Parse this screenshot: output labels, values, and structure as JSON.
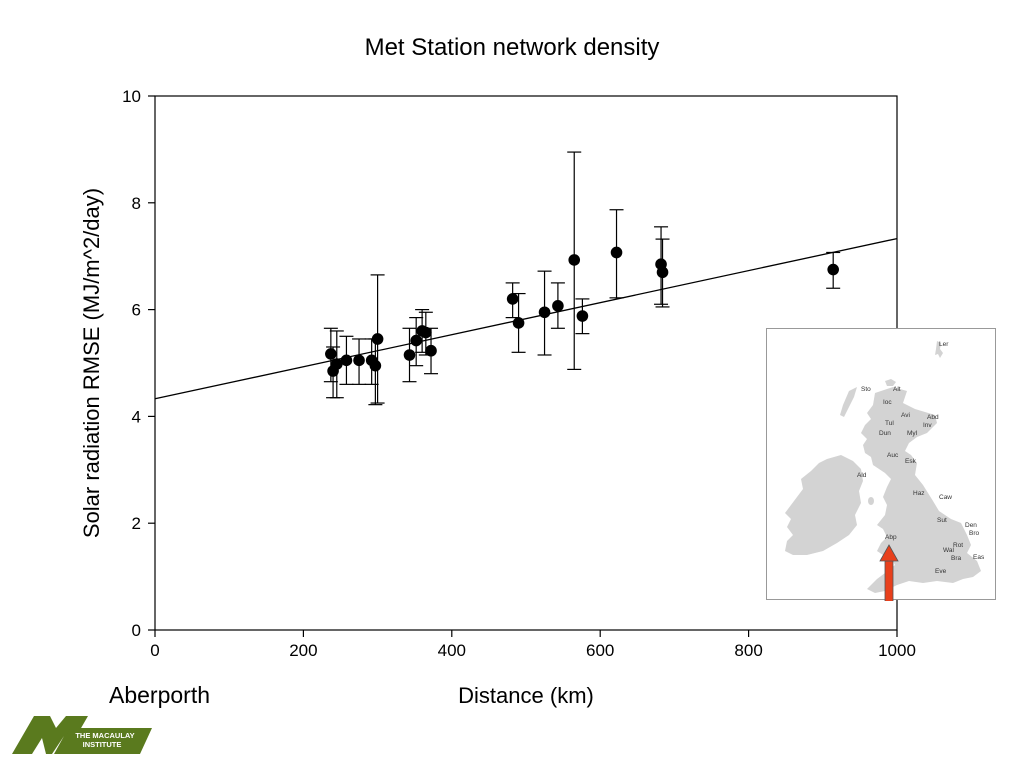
{
  "chart_data": {
    "type": "scatter",
    "title": "Met Station network density",
    "xlabel": "Distance (km)",
    "ylabel": "Solar radiation RMSE (MJ/m^2/day)",
    "xlim": [
      0,
      1000
    ],
    "ylim": [
      0,
      10
    ],
    "xticks": [
      "0",
      "200",
      "400",
      "600",
      "800",
      "1000"
    ],
    "yticks": [
      "0",
      "2",
      "4",
      "6",
      "8",
      "10"
    ],
    "grid": false,
    "series": [
      {
        "points": [
          {
            "x": 237,
            "y": 5.17,
            "lo": 4.65,
            "hi": 5.65
          },
          {
            "x": 240,
            "y": 4.85,
            "lo": 4.35,
            "hi": 5.3
          },
          {
            "x": 245,
            "y": 4.98,
            "lo": 4.35,
            "hi": 5.6
          },
          {
            "x": 258,
            "y": 5.05,
            "lo": 4.6,
            "hi": 5.5
          },
          {
            "x": 275,
            "y": 5.05,
            "lo": 4.6,
            "hi": 5.45
          },
          {
            "x": 292,
            "y": 5.05,
            "lo": 4.6,
            "hi": 5.45
          },
          {
            "x": 297,
            "y": 4.95,
            "lo": 4.22,
            "hi": 5.45
          },
          {
            "x": 300,
            "y": 5.45,
            "lo": 4.25,
            "hi": 6.65
          },
          {
            "x": 343,
            "y": 5.15,
            "lo": 4.65,
            "hi": 5.65
          },
          {
            "x": 352,
            "y": 5.42,
            "lo": 4.95,
            "hi": 5.85
          },
          {
            "x": 360,
            "y": 5.6,
            "lo": 5.2,
            "hi": 6.0
          },
          {
            "x": 365,
            "y": 5.57,
            "lo": 5.15,
            "hi": 5.95
          },
          {
            "x": 372,
            "y": 5.23,
            "lo": 4.8,
            "hi": 5.65
          },
          {
            "x": 482,
            "y": 6.2,
            "lo": 5.85,
            "hi": 6.5
          },
          {
            "x": 490,
            "y": 5.75,
            "lo": 5.2,
            "hi": 6.3
          },
          {
            "x": 525,
            "y": 5.95,
            "lo": 5.15,
            "hi": 6.72
          },
          {
            "x": 543,
            "y": 6.07,
            "lo": 5.65,
            "hi": 6.5
          },
          {
            "x": 565,
            "y": 6.93,
            "lo": 4.88,
            "hi": 8.95
          },
          {
            "x": 576,
            "y": 5.88,
            "lo": 5.55,
            "hi": 6.2
          },
          {
            "x": 622,
            "y": 7.07,
            "lo": 6.22,
            "hi": 7.87
          },
          {
            "x": 682,
            "y": 6.85,
            "lo": 6.1,
            "hi": 7.55
          },
          {
            "x": 684,
            "y": 6.7,
            "lo": 6.05,
            "hi": 7.32
          },
          {
            "x": 914,
            "y": 6.75,
            "lo": 6.4,
            "hi": 7.07
          }
        ]
      }
    ],
    "trendline": {
      "x": [
        0,
        1000
      ],
      "y": [
        4.33,
        7.33
      ]
    }
  },
  "annotation": {
    "station_label": "Aberporth"
  },
  "inset_map": {
    "stations": [
      "Ler",
      "Sto",
      "Alt",
      "Ioc",
      "Avi",
      "Abd",
      "Tul",
      "Inv",
      "Dun",
      "Myl",
      "Auc",
      "Esk",
      "Ald",
      "Haz",
      "Caw",
      "Sut",
      "Den",
      "Bro",
      "Abp",
      "Rot",
      "Wal",
      "Bra",
      "Eas",
      "Eve"
    ],
    "arrow_color": "#e8401c"
  },
  "logo": {
    "line1": "THE MACAULAY",
    "line2": "INSTITUTE",
    "color": "#5a7a1e"
  }
}
